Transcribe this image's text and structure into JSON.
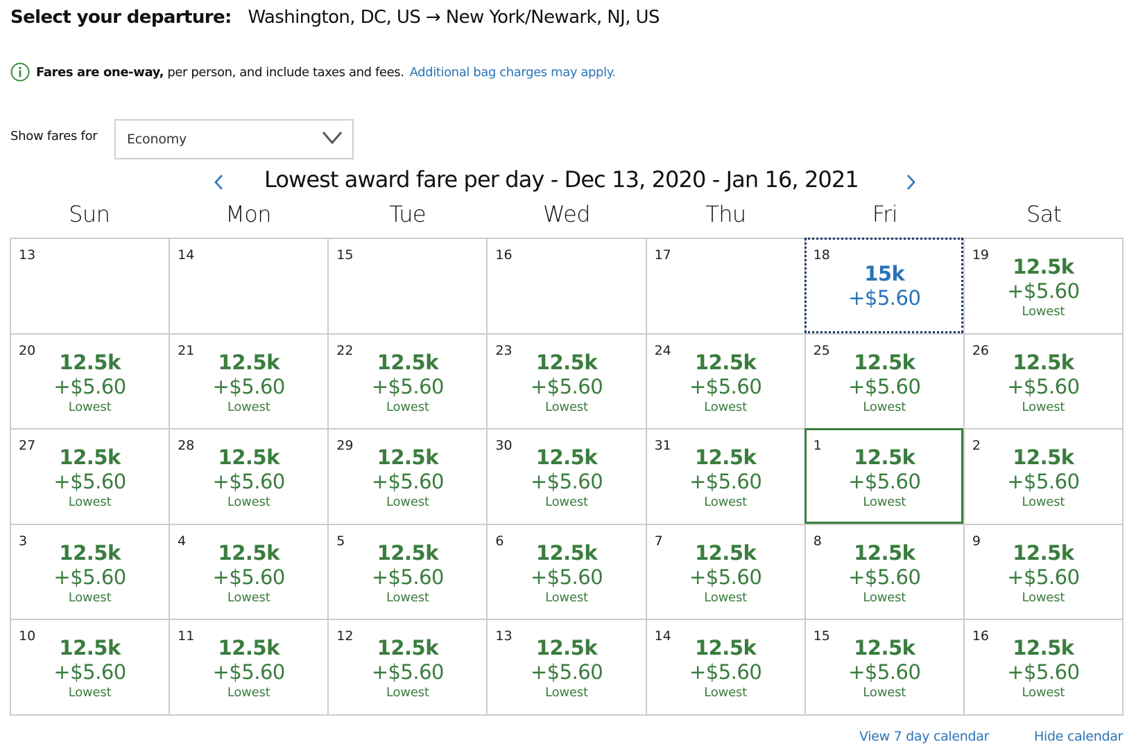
{
  "header": {
    "label": "Select your departure:",
    "route": "Washington, DC, US → New York/Newark, NJ, US"
  },
  "notice": {
    "icon": "info-circle-icon",
    "strong": "Fares are one-way,",
    "text": " per person, and include taxes and fees.",
    "link": "Additional bag charges may apply."
  },
  "fare_filter": {
    "label": "Show fares for",
    "selected": "Economy"
  },
  "calendar": {
    "title": "Lowest award fare per day - Dec 13, 2020 - Jan 16, 2021",
    "prev_icon": "chevron-left-icon",
    "next_icon": "chevron-right-icon",
    "days_of_week": [
      "Sun",
      "Mon",
      "Tue",
      "Wed",
      "Thu",
      "Fri",
      "Sat"
    ],
    "colors": {
      "lowest": "#3a7d3e",
      "other": "#2a74b8",
      "focus": "#1b3a6b",
      "grid": "#cccccc"
    },
    "cells": [
      {
        "day": "13"
      },
      {
        "day": "14"
      },
      {
        "day": "15"
      },
      {
        "day": "16"
      },
      {
        "day": "17"
      },
      {
        "day": "18",
        "miles": "15k",
        "tax": "+$5.60",
        "state": "focused",
        "tone": "blue"
      },
      {
        "day": "19",
        "miles": "12.5k",
        "tax": "+$5.60",
        "tag": "Lowest"
      },
      {
        "day": "20",
        "miles": "12.5k",
        "tax": "+$5.60",
        "tag": "Lowest"
      },
      {
        "day": "21",
        "miles": "12.5k",
        "tax": "+$5.60",
        "tag": "Lowest"
      },
      {
        "day": "22",
        "miles": "12.5k",
        "tax": "+$5.60",
        "tag": "Lowest"
      },
      {
        "day": "23",
        "miles": "12.5k",
        "tax": "+$5.60",
        "tag": "Lowest"
      },
      {
        "day": "24",
        "miles": "12.5k",
        "tax": "+$5.60",
        "tag": "Lowest"
      },
      {
        "day": "25",
        "miles": "12.5k",
        "tax": "+$5.60",
        "tag": "Lowest"
      },
      {
        "day": "26",
        "miles": "12.5k",
        "tax": "+$5.60",
        "tag": "Lowest"
      },
      {
        "day": "27",
        "miles": "12.5k",
        "tax": "+$5.60",
        "tag": "Lowest"
      },
      {
        "day": "28",
        "miles": "12.5k",
        "tax": "+$5.60",
        "tag": "Lowest"
      },
      {
        "day": "29",
        "miles": "12.5k",
        "tax": "+$5.60",
        "tag": "Lowest"
      },
      {
        "day": "30",
        "miles": "12.5k",
        "tax": "+$5.60",
        "tag": "Lowest"
      },
      {
        "day": "31",
        "miles": "12.5k",
        "tax": "+$5.60",
        "tag": "Lowest"
      },
      {
        "day": "1",
        "miles": "12.5k",
        "tax": "+$5.60",
        "tag": "Lowest",
        "state": "selected"
      },
      {
        "day": "2",
        "miles": "12.5k",
        "tax": "+$5.60",
        "tag": "Lowest"
      },
      {
        "day": "3",
        "miles": "12.5k",
        "tax": "+$5.60",
        "tag": "Lowest"
      },
      {
        "day": "4",
        "miles": "12.5k",
        "tax": "+$5.60",
        "tag": "Lowest"
      },
      {
        "day": "5",
        "miles": "12.5k",
        "tax": "+$5.60",
        "tag": "Lowest"
      },
      {
        "day": "6",
        "miles": "12.5k",
        "tax": "+$5.60",
        "tag": "Lowest"
      },
      {
        "day": "7",
        "miles": "12.5k",
        "tax": "+$5.60",
        "tag": "Lowest"
      },
      {
        "day": "8",
        "miles": "12.5k",
        "tax": "+$5.60",
        "tag": "Lowest"
      },
      {
        "day": "9",
        "miles": "12.5k",
        "tax": "+$5.60",
        "tag": "Lowest"
      },
      {
        "day": "10",
        "miles": "12.5k",
        "tax": "+$5.60",
        "tag": "Lowest"
      },
      {
        "day": "11",
        "miles": "12.5k",
        "tax": "+$5.60",
        "tag": "Lowest"
      },
      {
        "day": "12",
        "miles": "12.5k",
        "tax": "+$5.60",
        "tag": "Lowest"
      },
      {
        "day": "13",
        "miles": "12.5k",
        "tax": "+$5.60",
        "tag": "Lowest"
      },
      {
        "day": "14",
        "miles": "12.5k",
        "tax": "+$5.60",
        "tag": "Lowest"
      },
      {
        "day": "15",
        "miles": "12.5k",
        "tax": "+$5.60",
        "tag": "Lowest"
      },
      {
        "day": "16",
        "miles": "12.5k",
        "tax": "+$5.60",
        "tag": "Lowest"
      }
    ]
  },
  "footer": {
    "view_7_day": "View 7 day calendar",
    "hide_calendar": "Hide calendar"
  }
}
